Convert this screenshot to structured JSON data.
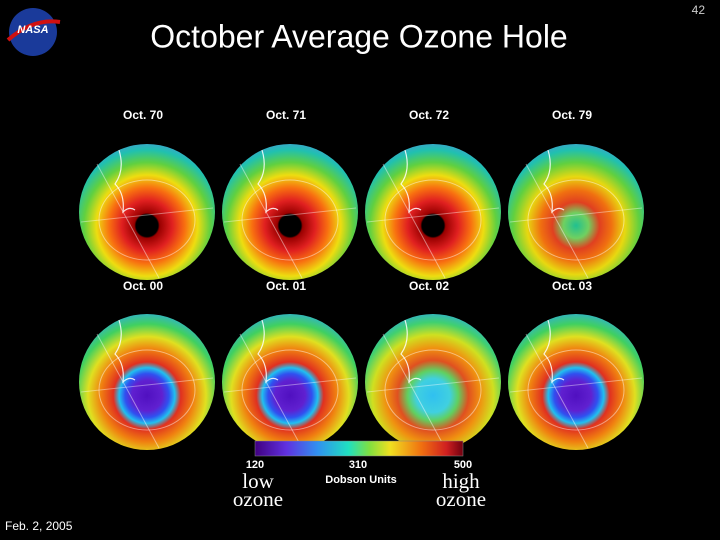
{
  "logo": "NASA",
  "page_number": "42",
  "title": "October Average Ozone Hole",
  "panels": [
    {
      "label": "Oct. 70"
    },
    {
      "label": "Oct. 71"
    },
    {
      "label": "Oct. 72"
    },
    {
      "label": "Oct. 79"
    },
    {
      "label": "Oct. 00"
    },
    {
      "label": "Oct. 01"
    },
    {
      "label": "Oct. 02"
    },
    {
      "label": "Oct. 03"
    }
  ],
  "colorbar": {
    "ticks": [
      "120",
      "310",
      "500"
    ],
    "unit": "Dobson Units",
    "low": "low ozone",
    "high": "high ozone"
  },
  "footer": "Feb. 2, 2005"
}
